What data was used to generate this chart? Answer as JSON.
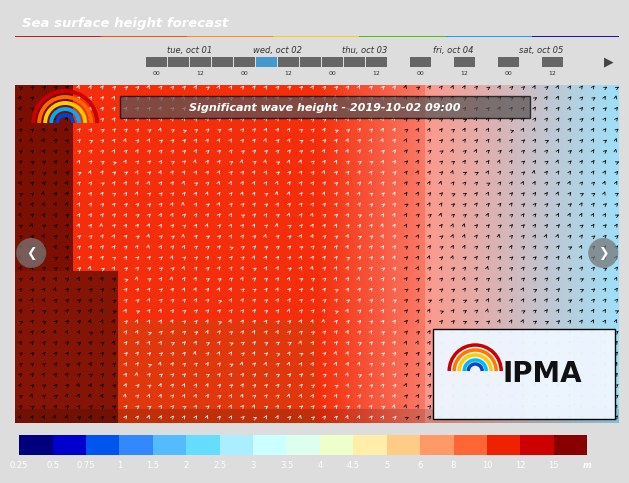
{
  "title": "Sea surface height forecast",
  "title_bg": "#1c4f72",
  "title_color": "#ffffff",
  "date_labels": [
    "tue, oct 01",
    "wed, oct 02",
    "thu, oct 03",
    "fri, oct 04",
    "sat, oct 05"
  ],
  "overlay_text": "Significant wave height - 2019-10-02 09:00",
  "colorbar_values": [
    "0.25",
    "0.5",
    "0.75",
    "1",
    "1.5",
    "2",
    "2.5",
    "3",
    "3.5",
    "4",
    "4.5",
    "5",
    "6",
    "8",
    "10",
    "12",
    "15",
    "m"
  ],
  "colorbar_colors": [
    "#00007f",
    "#0000cc",
    "#0055ee",
    "#3388ff",
    "#55bbff",
    "#66ddff",
    "#aaeeff",
    "#ccffff",
    "#ddfff0",
    "#eeffcc",
    "#ffeeaa",
    "#ffcc88",
    "#ff9966",
    "#ff6633",
    "#ee2200",
    "#cc0000",
    "#880000"
  ],
  "nav_bg": "#ffffff",
  "nav_bar_bg": "#e8e8e8",
  "highlight_box": "#4499cc",
  "dark_box": "#666666",
  "map_colors": {
    "deep_red": [
      0.5,
      0.07,
      0.02
    ],
    "bright_red": [
      0.96,
      0.18,
      0.04
    ],
    "orange_red": [
      0.97,
      0.38,
      0.15
    ],
    "salmon": [
      0.98,
      0.6,
      0.4
    ],
    "light_cyan": [
      0.72,
      0.94,
      0.98
    ],
    "pale_blue": [
      0.8,
      0.93,
      0.98
    ]
  },
  "ipma_text": "IPMA",
  "ipma_box_color": "#f0f8ff"
}
